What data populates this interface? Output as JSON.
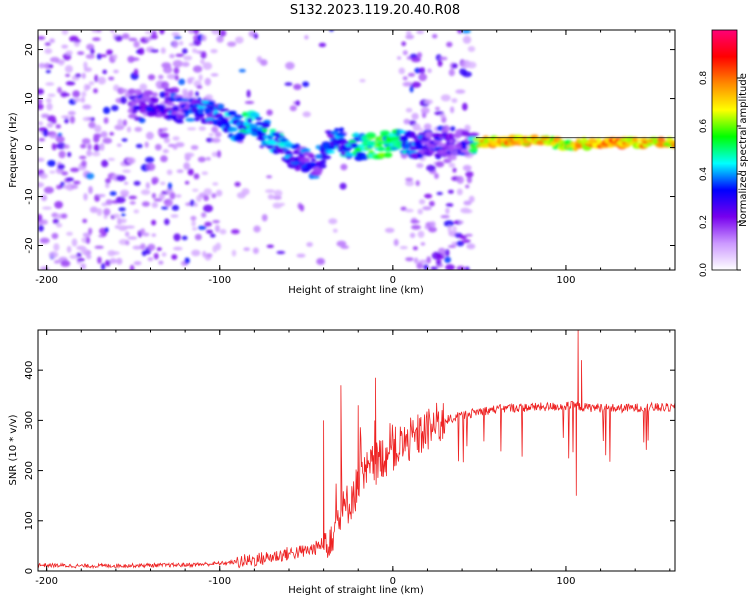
{
  "figure": {
    "title": "S132.2023.119.20.40.R08"
  },
  "chart_data": [
    {
      "type": "heatmap",
      "xlabel": "Height of straight line (km)",
      "ylabel": "Frequency (Hz)",
      "xlim": [
        -205,
        163
      ],
      "ylim": [
        -25,
        24
      ],
      "x_ticks": [
        -200,
        -100,
        0,
        100
      ],
      "y_ticks": [
        -20,
        -10,
        0,
        10,
        20
      ],
      "colorbar": {
        "label": "Normalized spectral amplitude",
        "range": [
          0,
          1
        ],
        "ticks": [
          0.0,
          0.2,
          0.4,
          0.6,
          0.8
        ],
        "colormap": [
          "#ffffff",
          "#cc99ff",
          "#7700ee",
          "#0000ff",
          "#00ffff",
          "#00ff00",
          "#ffff00",
          "#ff8800",
          "#ff0000",
          "#ff0077"
        ]
      },
      "ridge": [
        {
          "x": -140,
          "y": 9,
          "a": 0.35
        },
        {
          "x": -120,
          "y": 8,
          "a": 0.4
        },
        {
          "x": -100,
          "y": 7,
          "a": 0.45
        },
        {
          "x": -90,
          "y": 4,
          "a": 0.5
        },
        {
          "x": -80,
          "y": 5,
          "a": 0.55
        },
        {
          "x": -70,
          "y": 2,
          "a": 0.5
        },
        {
          "x": -60,
          "y": -1,
          "a": 0.45
        },
        {
          "x": -45,
          "y": -4,
          "a": 0.4
        },
        {
          "x": -35,
          "y": 2,
          "a": 0.45
        },
        {
          "x": -25,
          "y": 0.5,
          "a": 0.5
        },
        {
          "x": -10,
          "y": 0,
          "a": 0.65
        },
        {
          "x": 0,
          "y": 1,
          "a": 0.6
        },
        {
          "x": 20,
          "y": 0.5,
          "a": 0.35
        },
        {
          "x": 45,
          "y": 1,
          "a": 0.35
        },
        {
          "x": 50,
          "y": 1,
          "a": 0.8
        },
        {
          "x": 70,
          "y": 1.5,
          "a": 0.85
        },
        {
          "x": 85,
          "y": 1.5,
          "a": 0.8
        },
        {
          "x": 100,
          "y": 0.5,
          "a": 0.75
        },
        {
          "x": 120,
          "y": 1,
          "a": 0.9
        },
        {
          "x": 150,
          "y": 1,
          "a": 0.85
        },
        {
          "x": 163,
          "y": 1,
          "a": 0.8
        }
      ]
    },
    {
      "type": "line",
      "xlabel": "Height of straight line (km)",
      "ylabel": "SNR (10 * v/v)",
      "xlim": [
        -205,
        163
      ],
      "ylim": [
        0,
        480
      ],
      "x_ticks": [
        -200,
        -100,
        0,
        100
      ],
      "y_ticks": [
        0,
        100,
        200,
        300,
        400
      ],
      "series": [
        {
          "color": "#ee2222",
          "x": [
            -205,
            -180,
            -150,
            -120,
            -100,
            -90,
            -80,
            -70,
            -60,
            -50,
            -45,
            -40,
            -35,
            -30,
            -25,
            -20,
            -15,
            -10,
            -5,
            0,
            5,
            10,
            15,
            20,
            25,
            30,
            35,
            40,
            50,
            60,
            70,
            80,
            90,
            100,
            105,
            110,
            120,
            130,
            140,
            150,
            163
          ],
          "y": [
            12,
            10,
            11,
            12,
            15,
            18,
            22,
            28,
            35,
            40,
            45,
            55,
            80,
            110,
            140,
            170,
            195,
            215,
            230,
            240,
            250,
            260,
            270,
            280,
            290,
            300,
            305,
            310,
            318,
            322,
            325,
            326,
            327,
            328,
            330,
            326,
            325,
            324,
            325,
            326,
            325
          ],
          "spikes": [
            {
              "x": -10,
              "y": 385
            },
            {
              "x": -30,
              "y": 370
            },
            {
              "x": -40,
              "y": 300
            },
            {
              "x": -20,
              "y": 330
            },
            {
              "x": 107,
              "y": 480
            },
            {
              "x": 106,
              "y": 150
            },
            {
              "x": 109,
              "y": 420
            }
          ]
        }
      ]
    }
  ]
}
